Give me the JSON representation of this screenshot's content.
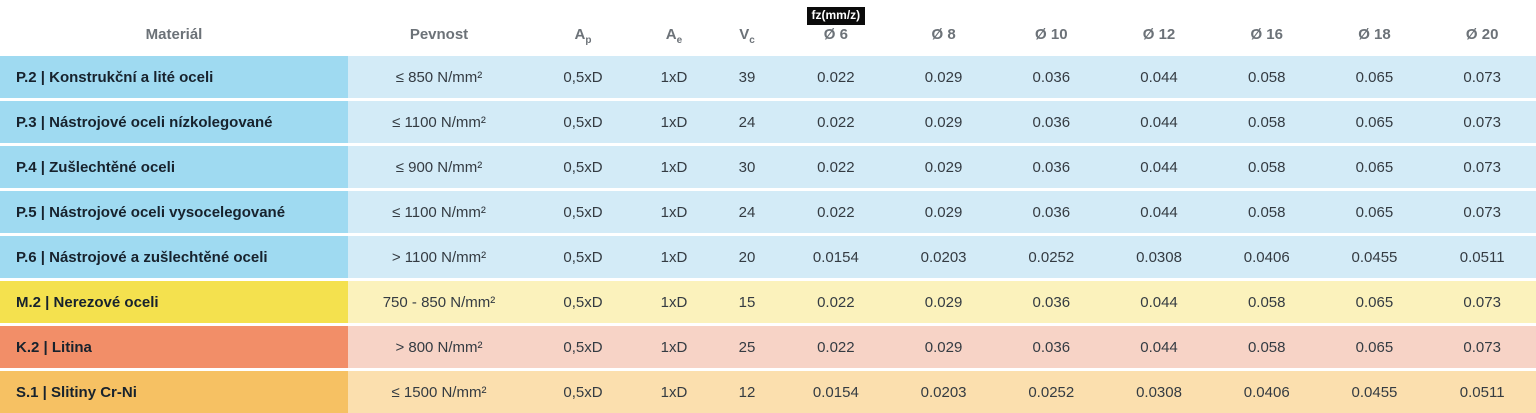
{
  "header": {
    "material": "Materiál",
    "pevnost": "Pevnost",
    "params": [
      {
        "base": "A",
        "sub": "p"
      },
      {
        "base": "A",
        "sub": "e"
      },
      {
        "base": "V",
        "sub": "c"
      }
    ],
    "fz_badge": "fz(mm/z)",
    "diameters": [
      "Ø 6",
      "Ø 8",
      "Ø 10",
      "Ø 12",
      "Ø 16",
      "Ø 18",
      "Ø 20"
    ]
  },
  "rows": [
    {
      "group": "p",
      "material": "P.2 | Konstrukční a lité oceli",
      "pevnost": "≤ 850 N/mm²",
      "ap": "0,5xD",
      "ae": "1xD",
      "vc": "39",
      "fz": [
        "0.022",
        "0.029",
        "0.036",
        "0.044",
        "0.058",
        "0.065",
        "0.073"
      ]
    },
    {
      "group": "p",
      "material": "P.3 | Nástrojové oceli nízkolegované",
      "pevnost": "≤ 1100 N/mm²",
      "ap": "0,5xD",
      "ae": "1xD",
      "vc": "24",
      "fz": [
        "0.022",
        "0.029",
        "0.036",
        "0.044",
        "0.058",
        "0.065",
        "0.073"
      ]
    },
    {
      "group": "p",
      "material": "P.4 | Zušlechtěné oceli",
      "pevnost": "≤ 900 N/mm²",
      "ap": "0,5xD",
      "ae": "1xD",
      "vc": "30",
      "fz": [
        "0.022",
        "0.029",
        "0.036",
        "0.044",
        "0.058",
        "0.065",
        "0.073"
      ]
    },
    {
      "group": "p",
      "material": "P.5 | Nástrojové oceli vysocelegované",
      "pevnost": "≤ 1100 N/mm²",
      "ap": "0,5xD",
      "ae": "1xD",
      "vc": "24",
      "fz": [
        "0.022",
        "0.029",
        "0.036",
        "0.044",
        "0.058",
        "0.065",
        "0.073"
      ]
    },
    {
      "group": "p",
      "material": "P.6 | Nástrojové a zušlechtěné oceli",
      "pevnost": "> 1100 N/mm²",
      "ap": "0,5xD",
      "ae": "1xD",
      "vc": "20",
      "fz": [
        "0.0154",
        "0.0203",
        "0.0252",
        "0.0308",
        "0.0406",
        "0.0455",
        "0.0511"
      ]
    },
    {
      "group": "m",
      "material": "M.2 | Nerezové oceli",
      "pevnost": "750 - 850 N/mm²",
      "ap": "0,5xD",
      "ae": "1xD",
      "vc": "15",
      "fz": [
        "0.022",
        "0.029",
        "0.036",
        "0.044",
        "0.058",
        "0.065",
        "0.073"
      ]
    },
    {
      "group": "k",
      "material": "K.2 | Litina",
      "pevnost": "> 800 N/mm²",
      "ap": "0,5xD",
      "ae": "1xD",
      "vc": "25",
      "fz": [
        "0.022",
        "0.029",
        "0.036",
        "0.044",
        "0.058",
        "0.065",
        "0.073"
      ]
    },
    {
      "group": "s",
      "material": "S.1 | Slitiny Cr-Ni",
      "pevnost": "≤ 1500 N/mm²",
      "ap": "0,5xD",
      "ae": "1xD",
      "vc": "12",
      "fz": [
        "0.0154",
        "0.0203",
        "0.0252",
        "0.0308",
        "0.0406",
        "0.0455",
        "0.0511"
      ]
    }
  ],
  "colors": {
    "p_material": "#9fdaf1",
    "p_row": "#d3ebf7",
    "m_material": "#f4e14e",
    "m_row": "#fbf2bc",
    "k_material": "#f28e68",
    "k_row": "#f7d3c6",
    "s_material": "#f6c163",
    "s_row": "#fbdfae",
    "badge_bg": "#0b0b0b",
    "badge_text": "#ffffff",
    "header_text": "#6c7278",
    "value_text": "#343b42",
    "material_text": "#17222d"
  }
}
